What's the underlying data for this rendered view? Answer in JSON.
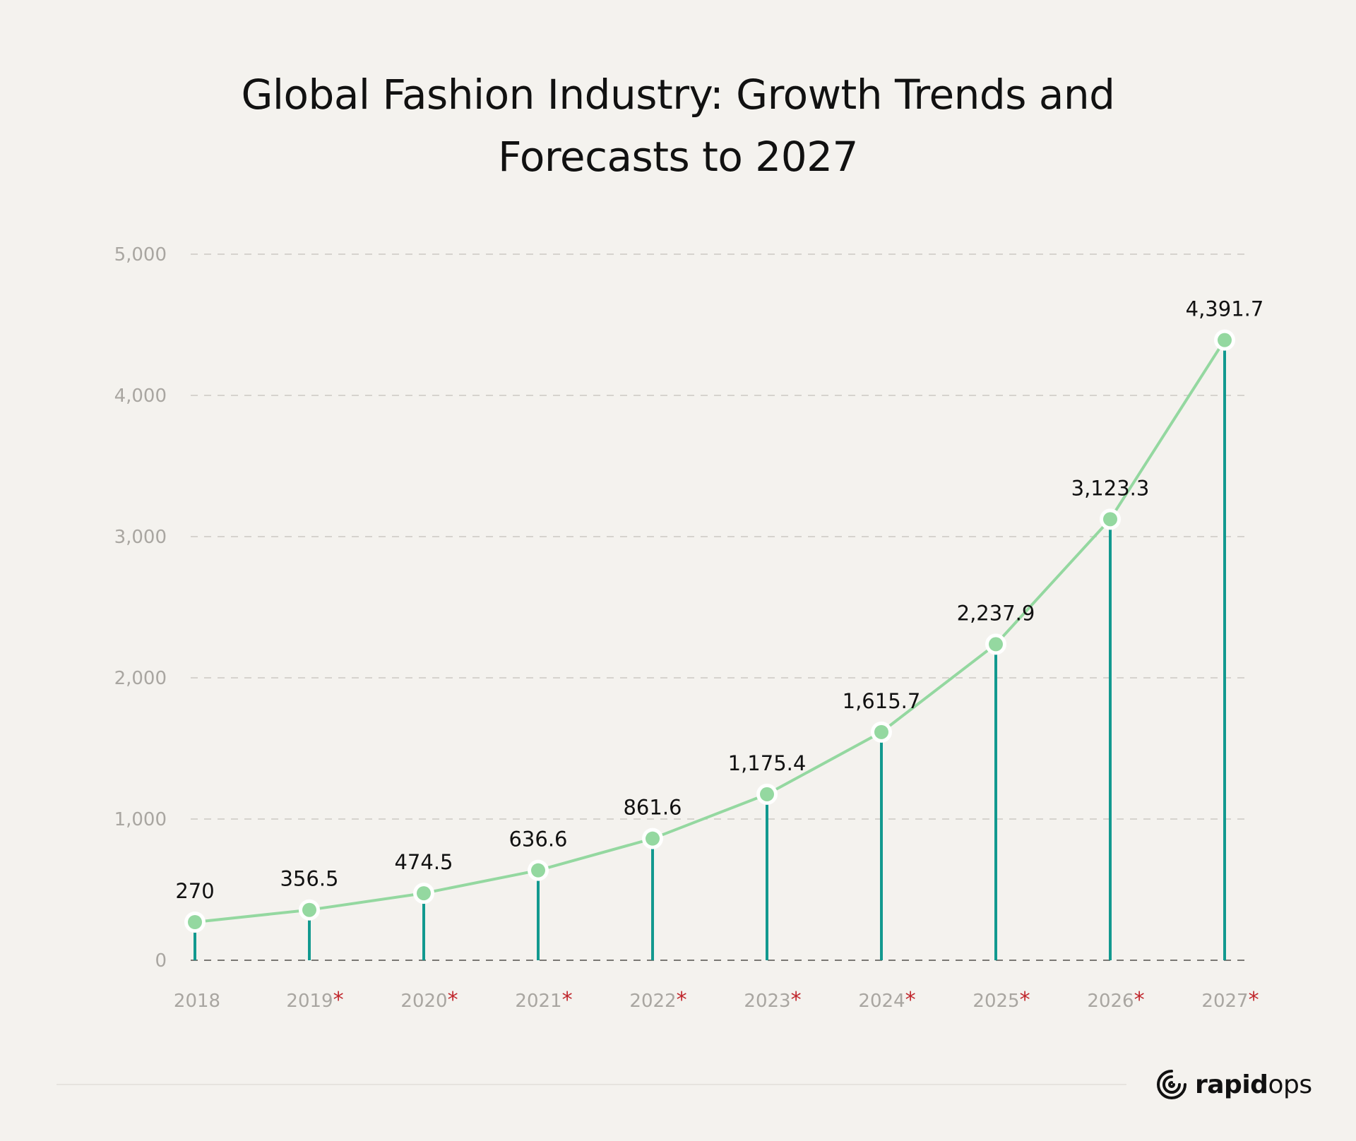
{
  "title_line1": "Global Fashion Industry: Growth Trends and",
  "title_line2": "Forecasts to 2027",
  "colors": {
    "line": "#94d8a0",
    "stem": "#12998f",
    "marker": "#94d8a0",
    "asterisk": "#c0272d",
    "grid": "#d6d3ce",
    "tick": "#a9a6a1"
  },
  "chart_data": {
    "type": "line",
    "categories": [
      "2018",
      "2019",
      "2020",
      "2021",
      "2022",
      "2023",
      "2024",
      "2025",
      "2026",
      "2027"
    ],
    "forecast_mark": "*",
    "forecast": [
      false,
      true,
      true,
      true,
      true,
      true,
      true,
      true,
      true,
      true
    ],
    "values": [
      270,
      356.5,
      474.5,
      636.6,
      861.6,
      1175.4,
      1615.7,
      2237.9,
      3123.3,
      4391.7
    ],
    "value_labels": [
      "270",
      "356.5",
      "474.5",
      "636.6",
      "861.6",
      "1,175.4",
      "1,615.7",
      "2,237.9",
      "3,123.3",
      "4,391.7"
    ],
    "yticks": [
      0,
      1000,
      2000,
      3000,
      4000,
      5000
    ],
    "ytick_labels": [
      "0",
      "1,000",
      "2,000",
      "3,000",
      "4,000",
      "5,000"
    ],
    "ylim": [
      0,
      5000
    ],
    "grid": true,
    "title": "Global Fashion Industry: Growth Trends and Forecasts to 2027",
    "xlabel": "",
    "ylabel": ""
  },
  "brand": {
    "part1": "rapid",
    "part2": "ops",
    "icon": "rapidops-logo-icon"
  }
}
